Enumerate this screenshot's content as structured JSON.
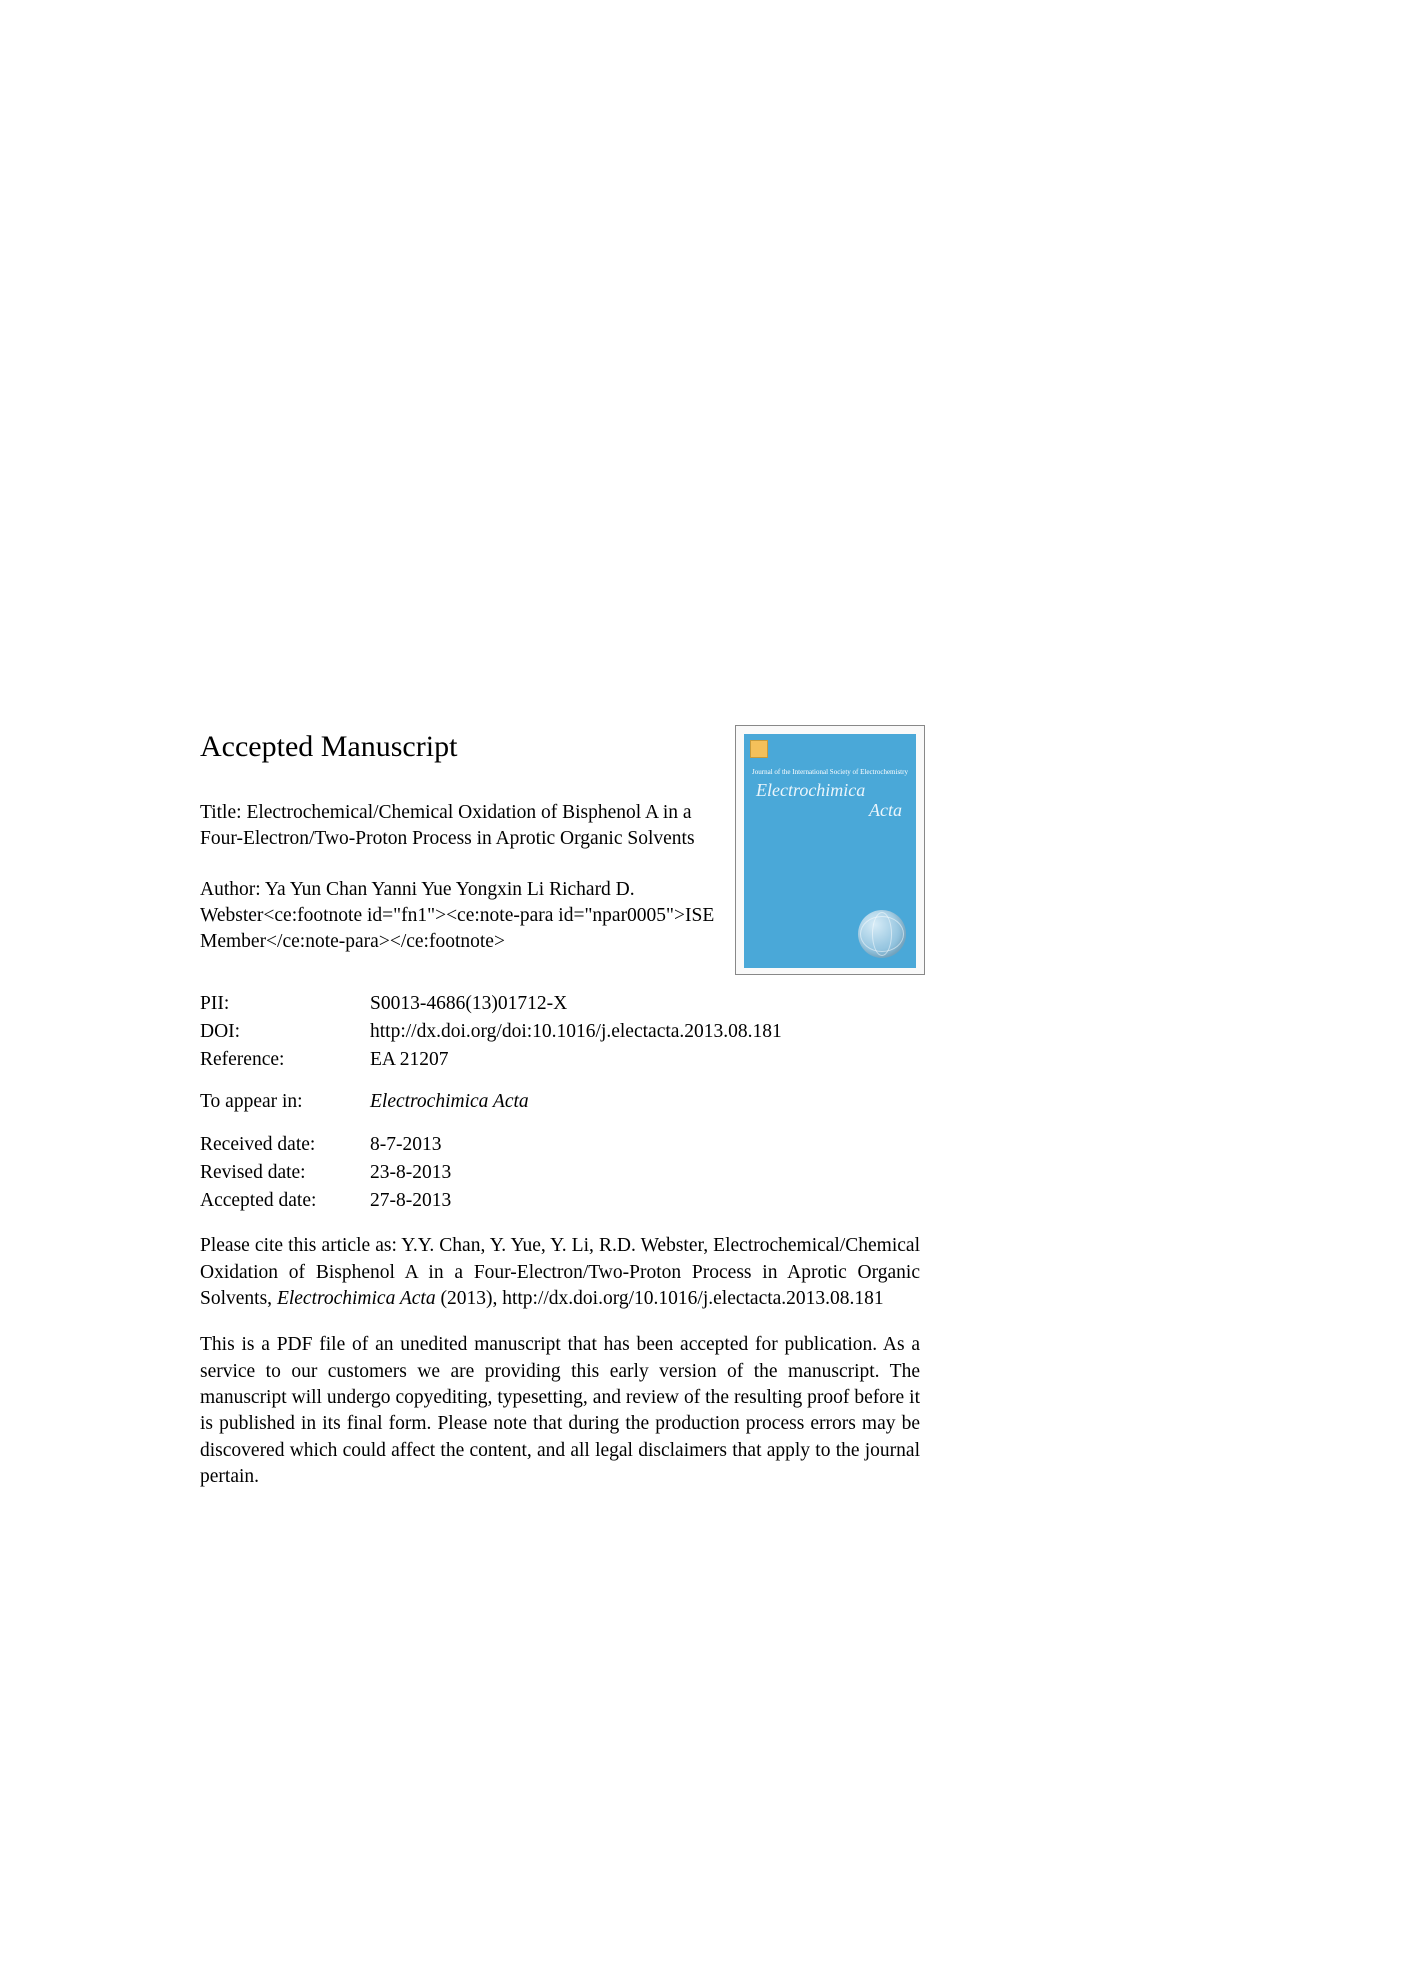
{
  "heading": "Accepted Manuscript",
  "title_label": "Title:",
  "title_text": "Electrochemical/Chemical Oxidation of Bisphenol A in a Four-Electron/Two-Proton Process in Aprotic Organic Solvents",
  "author_label": "Author:",
  "author_text": "Ya Yun Chan Yanni Yue Yongxin Li Richard D. Webster<ce:footnote id=\"fn1\"><ce:note-para id=\"npar0005\">ISE Member</ce:note-para></ce:footnote>",
  "meta": {
    "pii_label": "PII:",
    "pii_value": "S0013-4686(13)01712-X",
    "doi_label": "DOI:",
    "doi_value": "http://dx.doi.org/doi:10.1016/j.electacta.2013.08.181",
    "ref_label": "Reference:",
    "ref_value": "EA 21207",
    "appear_label": "To appear in:",
    "appear_value": "Electrochimica Acta",
    "received_label": "Received date:",
    "received_value": "8-7-2013",
    "revised_label": "Revised date:",
    "revised_value": "23-8-2013",
    "accepted_label": "Accepted date:",
    "accepted_value": "27-8-2013"
  },
  "cite_prefix": "Please cite this article as: Y.Y. Chan, Y. Yue, Y. Li, R.D. Webster, Electrochemical/Chemical Oxidation of Bisphenol A in a Four-Electron/Two-Proton Process in Aprotic Organic Solvents, ",
  "cite_journal": "Electrochimica Acta",
  "cite_suffix": " (2013), http://dx.doi.org/10.1016/j.electacta.2013.08.181",
  "disclaimer": "This is a PDF file of an unedited manuscript that has been accepted for publication. As a service to our customers we are providing this early version of the manuscript. The manuscript will undergo copyediting, typesetting, and review of the resulting proof before it is published in its final form. Please note that during the production process errors may be discovered which could affect the content, and all legal disclaimers that apply to the journal pertain.",
  "cover": {
    "title_line1": "Electrochimica",
    "title_line2": "Acta",
    "tagline": "Journal of the International Society of Electrochemistry"
  }
}
